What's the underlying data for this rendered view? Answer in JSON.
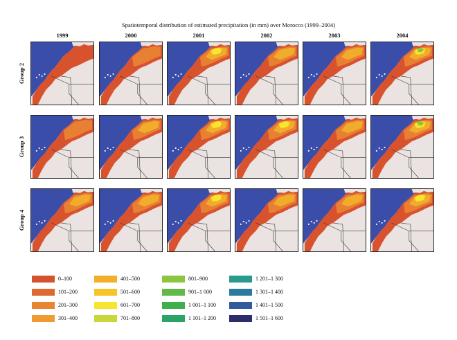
{
  "figure": {
    "title": "Spatiotemporal distribution of estimated precipitation (in mm) over Morocco (1999–2004)"
  },
  "years": [
    "1999",
    "2000",
    "2001",
    "2002",
    "2003",
    "2004"
  ],
  "groups": [
    "Group 2",
    "Group 3",
    "Group 4"
  ],
  "map_colors": {
    "ocean": "#3a4da8",
    "background_land": "#eae3e1",
    "morocco_base": "#d9522e",
    "border_lines": "#333333"
  },
  "panel_intensity": [
    [
      0,
      1,
      3,
      2,
      2,
      4
    ],
    [
      1,
      2,
      3,
      3,
      2,
      4
    ],
    [
      2,
      2,
      3,
      2,
      2,
      3
    ]
  ],
  "legend": [
    {
      "label": "0–100",
      "color": "#d4532e"
    },
    {
      "label": "101–200",
      "color": "#dd6a30"
    },
    {
      "label": "201–300",
      "color": "#e88533"
    },
    {
      "label": "301–400",
      "color": "#ef9b30"
    },
    {
      "label": "401–500",
      "color": "#f2b02a"
    },
    {
      "label": "501–600",
      "color": "#f5c528"
    },
    {
      "label": "601–700",
      "color": "#f7e52e"
    },
    {
      "label": "701–800",
      "color": "#c8d83a"
    },
    {
      "label": "801–900",
      "color": "#8cc63f"
    },
    {
      "label": "901–1 000",
      "color": "#62b94a"
    },
    {
      "label": "1 001–1 100",
      "color": "#3fae4c"
    },
    {
      "label": "1 101–1 200",
      "color": "#2aa466"
    },
    {
      "label": "1 201–1 300",
      "color": "#2b9a8e"
    },
    {
      "label": "1 301–1 400",
      "color": "#2b7ba0"
    },
    {
      "label": "1 401–1 500",
      "color": "#2f5b9f"
    },
    {
      "label": "1 501–1 600",
      "color": "#2c2d6b"
    }
  ]
}
